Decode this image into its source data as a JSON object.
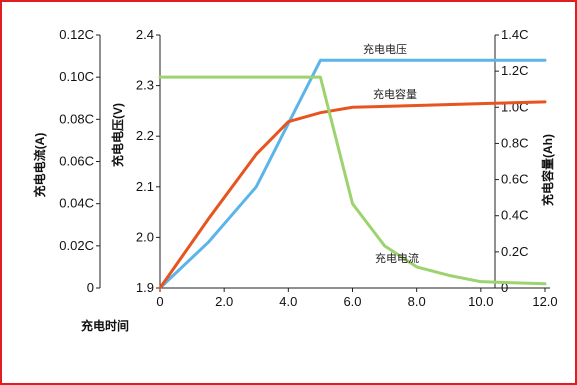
{
  "chart_data": {
    "type": "line",
    "title": "",
    "xlabel": "充电时间",
    "x_ticks": [
      "0",
      "2.0",
      "4.0",
      "6.0",
      "8.0",
      "10.0",
      "12.0"
    ],
    "xlim": [
      0,
      12
    ],
    "axes": {
      "current": {
        "label": "充电电流(A)",
        "ticks": [
          "0",
          "0.02C",
          "0.04C",
          "0.06C",
          "0.08C",
          "0.10C",
          "0.12C"
        ],
        "lim": [
          0,
          0.12
        ]
      },
      "voltage": {
        "label": "充电电压(V)",
        "ticks": [
          "1.9",
          "2.0",
          "2.1",
          "2.2",
          "2.3",
          "2.4"
        ],
        "lim": [
          1.9,
          2.4
        ]
      },
      "capacity": {
        "label": "充电容量(Ah)",
        "ticks": [
          "0",
          "0.2C",
          "0.4C",
          "0.6C",
          "0.8C",
          "1.0C",
          "1.2C",
          "1.4C"
        ],
        "lim": [
          0,
          1.4
        ]
      }
    },
    "series": [
      {
        "name": "充电电压",
        "axis": "voltage",
        "color": "#5bb4ea",
        "x": [
          0,
          1.5,
          3.0,
          5.0,
          6.0,
          8.0,
          10.0,
          12.0
        ],
        "y": [
          1.9,
          1.99,
          2.1,
          2.35,
          2.35,
          2.35,
          2.35,
          2.35
        ]
      },
      {
        "name": "充电容量",
        "axis": "capacity",
        "color": "#e8541f",
        "x": [
          0,
          1.5,
          3.0,
          4.0,
          5.0,
          6.0,
          8.0,
          10.0,
          12.0
        ],
        "y": [
          0,
          0.38,
          0.74,
          0.92,
          0.97,
          1.0,
          1.01,
          1.02,
          1.03
        ]
      },
      {
        "name": "充电电流",
        "axis": "current",
        "color": "#9dd36f",
        "x": [
          0,
          2.0,
          4.0,
          5.0,
          6.0,
          7.0,
          8.0,
          9.0,
          10.0,
          12.0
        ],
        "y": [
          0.1,
          0.1,
          0.1,
          0.1,
          0.04,
          0.02,
          0.01,
          0.006,
          0.003,
          0.002
        ]
      }
    ],
    "grid": false,
    "legend": "none"
  }
}
